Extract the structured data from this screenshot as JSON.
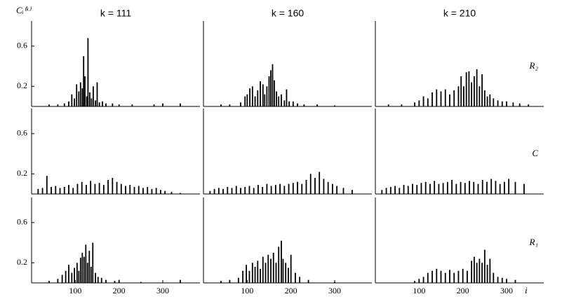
{
  "chart_data": [
    {
      "type": "bar",
      "title": "k = 111",
      "ylabel": "Cᵢ⁽ᵏ⁾",
      "xlim": [
        0,
        385
      ],
      "ylim": [
        0,
        0.85
      ],
      "yticks": [
        0.2,
        0.6
      ],
      "color": "#000000",
      "x": [
        40,
        60,
        75,
        85,
        92,
        98,
        103,
        108,
        112,
        116,
        119,
        122,
        126,
        129,
        133,
        137,
        141,
        146,
        150,
        155,
        162,
        170,
        185,
        200,
        230,
        280,
        300,
        340
      ],
      "values": [
        0.02,
        0.02,
        0.03,
        0.05,
        0.12,
        0.08,
        0.22,
        0.15,
        0.24,
        0.18,
        0.5,
        0.3,
        0.1,
        0.68,
        0.14,
        0.08,
        0.2,
        0.06,
        0.24,
        0.04,
        0.05,
        0.03,
        0.03,
        0.02,
        0.02,
        0.02,
        0.03,
        0.03
      ]
    },
    {
      "type": "bar",
      "title": "k = 160",
      "xlim": [
        0,
        385
      ],
      "ylim": [
        0,
        0.85
      ],
      "color": "#000000",
      "x": [
        40,
        60,
        85,
        95,
        100,
        106,
        112,
        118,
        124,
        130,
        136,
        140,
        145,
        150,
        154,
        158,
        162,
        167,
        172,
        178,
        185,
        190,
        196,
        205,
        215,
        230,
        260,
        300
      ],
      "values": [
        0.02,
        0.02,
        0.04,
        0.1,
        0.12,
        0.18,
        0.2,
        0.1,
        0.16,
        0.25,
        0.22,
        0.12,
        0.2,
        0.3,
        0.36,
        0.42,
        0.26,
        0.15,
        0.1,
        0.12,
        0.06,
        0.17,
        0.05,
        0.05,
        0.03,
        0.02,
        0.02,
        0.01
      ]
    },
    {
      "type": "bar",
      "title": "k = 210",
      "row_label": "R₂",
      "xlim": [
        0,
        385
      ],
      "ylim": [
        0,
        0.85
      ],
      "color": "#000000",
      "x": [
        30,
        60,
        90,
        100,
        110,
        120,
        130,
        140,
        150,
        160,
        170,
        180,
        190,
        196,
        202,
        208,
        214,
        220,
        226,
        232,
        238,
        244,
        250,
        256,
        262,
        270,
        280,
        290,
        300,
        315,
        330,
        350
      ],
      "values": [
        0.02,
        0.02,
        0.04,
        0.06,
        0.1,
        0.08,
        0.14,
        0.17,
        0.15,
        0.17,
        0.12,
        0.16,
        0.2,
        0.3,
        0.2,
        0.34,
        0.35,
        0.24,
        0.3,
        0.37,
        0.2,
        0.32,
        0.16,
        0.1,
        0.12,
        0.08,
        0.06,
        0.05,
        0.05,
        0.04,
        0.03,
        0.02
      ]
    },
    {
      "type": "bar",
      "xlim": [
        0,
        385
      ],
      "ylim": [
        0,
        0.85
      ],
      "yticks": [
        0.2,
        0.6
      ],
      "color": "#000000",
      "x": [
        15,
        25,
        35,
        45,
        55,
        65,
        75,
        85,
        95,
        105,
        115,
        125,
        135,
        145,
        155,
        165,
        175,
        185,
        195,
        205,
        215,
        225,
        235,
        245,
        255,
        265,
        275,
        285,
        295,
        305,
        320,
        340
      ],
      "values": [
        0.05,
        0.06,
        0.18,
        0.07,
        0.08,
        0.06,
        0.07,
        0.09,
        0.06,
        0.1,
        0.12,
        0.09,
        0.13,
        0.1,
        0.11,
        0.09,
        0.14,
        0.16,
        0.12,
        0.1,
        0.08,
        0.09,
        0.07,
        0.08,
        0.06,
        0.07,
        0.05,
        0.06,
        0.04,
        0.03,
        0.02,
        0.01
      ]
    },
    {
      "type": "bar",
      "xlim": [
        0,
        385
      ],
      "ylim": [
        0,
        0.85
      ],
      "color": "#000000",
      "x": [
        15,
        25,
        35,
        45,
        55,
        65,
        75,
        85,
        95,
        105,
        115,
        125,
        135,
        145,
        155,
        165,
        175,
        185,
        195,
        205,
        215,
        225,
        235,
        245,
        255,
        265,
        275,
        285,
        295,
        305,
        320,
        340
      ],
      "values": [
        0.03,
        0.05,
        0.06,
        0.05,
        0.07,
        0.06,
        0.08,
        0.06,
        0.07,
        0.08,
        0.06,
        0.09,
        0.07,
        0.1,
        0.08,
        0.09,
        0.1,
        0.08,
        0.1,
        0.11,
        0.12,
        0.1,
        0.14,
        0.2,
        0.16,
        0.22,
        0.15,
        0.12,
        0.1,
        0.08,
        0.06,
        0.04
      ]
    },
    {
      "type": "bar",
      "row_label": "C",
      "xlim": [
        0,
        385
      ],
      "ylim": [
        0,
        0.85
      ],
      "color": "#000000",
      "x": [
        15,
        25,
        35,
        45,
        55,
        65,
        75,
        85,
        95,
        105,
        115,
        125,
        135,
        145,
        155,
        165,
        175,
        185,
        195,
        205,
        215,
        225,
        235,
        245,
        255,
        265,
        275,
        285,
        295,
        305,
        320,
        340
      ],
      "values": [
        0.04,
        0.06,
        0.07,
        0.08,
        0.06,
        0.09,
        0.08,
        0.1,
        0.09,
        0.11,
        0.12,
        0.1,
        0.13,
        0.1,
        0.11,
        0.12,
        0.14,
        0.1,
        0.12,
        0.11,
        0.13,
        0.12,
        0.1,
        0.14,
        0.12,
        0.15,
        0.13,
        0.1,
        0.12,
        0.15,
        0.12,
        0.1
      ]
    },
    {
      "type": "bar",
      "xlim": [
        0,
        385
      ],
      "ylim": [
        0,
        0.85
      ],
      "yticks": [
        0.2,
        0.6
      ],
      "xticks": [
        100,
        200,
        300
      ],
      "color": "#000000",
      "x": [
        40,
        60,
        70,
        78,
        85,
        92,
        98,
        104,
        108,
        112,
        116,
        120,
        124,
        128,
        132,
        136,
        140,
        146,
        152,
        160,
        170,
        190,
        200,
        250,
        340
      ],
      "values": [
        0.02,
        0.04,
        0.08,
        0.12,
        0.18,
        0.1,
        0.15,
        0.2,
        0.12,
        0.25,
        0.3,
        0.26,
        0.38,
        0.2,
        0.32,
        0.16,
        0.4,
        0.1,
        0.06,
        0.05,
        0.03,
        0.02,
        0.03,
        0.01,
        0.03
      ]
    },
    {
      "type": "bar",
      "xlim": [
        0,
        385
      ],
      "ylim": [
        0,
        0.85
      ],
      "xticks": [
        100,
        200,
        300
      ],
      "color": "#000000",
      "x": [
        40,
        60,
        80,
        90,
        98,
        105,
        112,
        118,
        124,
        130,
        136,
        142,
        148,
        154,
        160,
        166,
        172,
        178,
        182,
        188,
        194,
        200,
        210,
        220,
        240,
        300
      ],
      "values": [
        0.02,
        0.03,
        0.05,
        0.12,
        0.18,
        0.12,
        0.2,
        0.16,
        0.22,
        0.14,
        0.26,
        0.2,
        0.28,
        0.24,
        0.3,
        0.2,
        0.36,
        0.42,
        0.24,
        0.2,
        0.15,
        0.28,
        0.1,
        0.06,
        0.03,
        0.01
      ]
    },
    {
      "type": "bar",
      "row_label": "R₁",
      "xlabel": "i",
      "xlim": [
        0,
        385
      ],
      "ylim": [
        0,
        0.85
      ],
      "xticks": [
        100,
        200,
        300
      ],
      "color": "#000000",
      "x": [
        90,
        100,
        110,
        120,
        130,
        140,
        150,
        160,
        170,
        180,
        190,
        200,
        210,
        220,
        226,
        232,
        238,
        244,
        250,
        256,
        262,
        270,
        280,
        290,
        300,
        320
      ],
      "values": [
        0.02,
        0.04,
        0.06,
        0.1,
        0.12,
        0.14,
        0.12,
        0.1,
        0.13,
        0.1,
        0.12,
        0.14,
        0.12,
        0.22,
        0.26,
        0.2,
        0.24,
        0.2,
        0.33,
        0.18,
        0.24,
        0.1,
        0.06,
        0.05,
        0.04,
        0.03
      ]
    }
  ]
}
